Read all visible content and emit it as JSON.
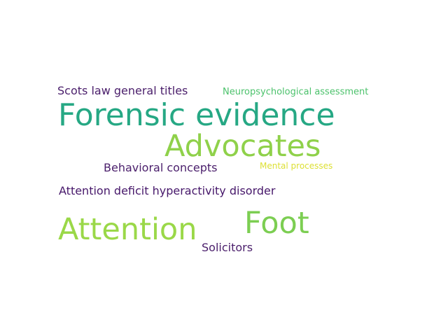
{
  "word_cloud": {
    "background_color": "#ffffff",
    "words": [
      {
        "text": "Scots law general titles",
        "color": "#4a1e6b"
      },
      {
        "text": "Neuropsychological assessment",
        "color": "#4cc26c"
      },
      {
        "text": "Forensic evidence",
        "color": "#26a884"
      },
      {
        "text": "Advocates",
        "color": "#8fd14a"
      },
      {
        "text": "Behavioral concepts",
        "color": "#4a1e6b"
      },
      {
        "text": "Mental processes",
        "color": "#dde035"
      },
      {
        "text": "Attention deficit hyperactivity disorder",
        "color": "#46176a"
      },
      {
        "text": "Foot",
        "color": "#7cce52"
      },
      {
        "text": "Attention",
        "color": "#9ad848"
      },
      {
        "text": "Solicitors",
        "color": "#4a1e6b"
      }
    ]
  }
}
